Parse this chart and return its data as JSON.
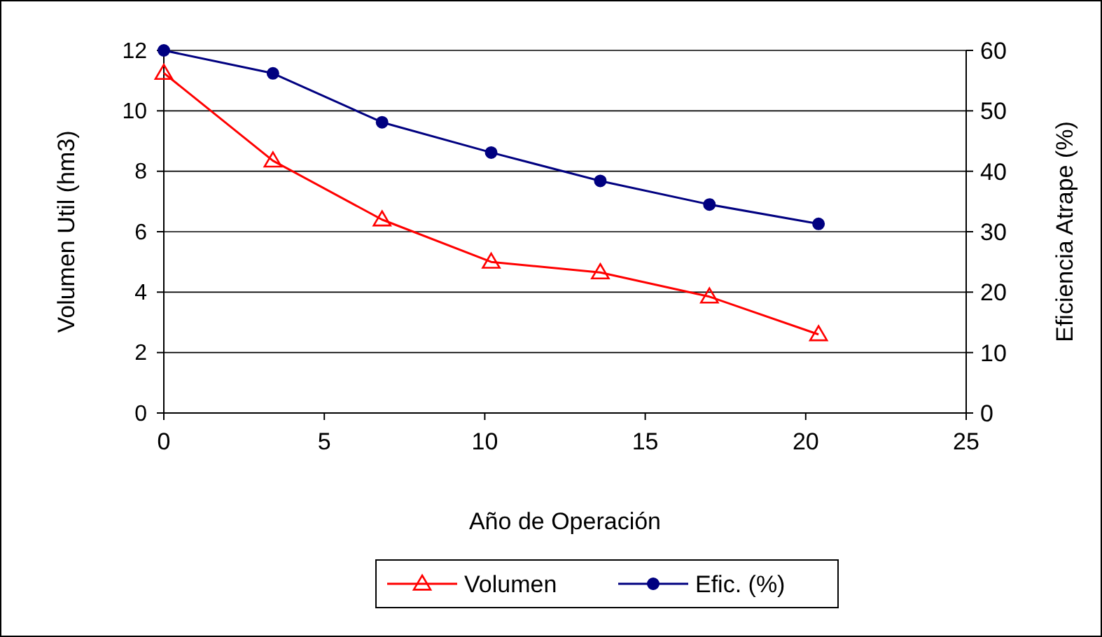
{
  "chart_data": {
    "type": "line",
    "xlabel": "Año de Operación",
    "ylabel": "Volumen Util (hm3)",
    "y2label": "Eficiencia Atrape (%)",
    "xlim": [
      0,
      25
    ],
    "xticks": [
      0,
      5,
      10,
      15,
      20,
      25
    ],
    "ylim": [
      0,
      12
    ],
    "yticks": [
      0,
      2,
      4,
      6,
      8,
      10,
      12
    ],
    "y2lim": [
      0,
      60
    ],
    "y2ticks": [
      0,
      10,
      20,
      30,
      40,
      50,
      60
    ],
    "grid": "y",
    "legend": "bottom",
    "series": [
      {
        "name": "Volumen",
        "color": "#ff0000",
        "marker": "triangle",
        "x": [
          0,
          3.4,
          6.8,
          10.2,
          13.6,
          17,
          20.4
        ],
        "values": [
          11.25,
          8.35,
          6.4,
          5.0,
          4.65,
          3.85,
          2.6
        ]
      },
      {
        "name": "Efic. (%)",
        "color": "#000080",
        "marker": "circle",
        "axis": "y2",
        "x": [
          0,
          3.4,
          6.8,
          10.2,
          13.6,
          17,
          20.4
        ],
        "values": [
          60,
          56.2,
          48.1,
          43.1,
          38.4,
          34.5,
          31.3
        ]
      }
    ]
  }
}
